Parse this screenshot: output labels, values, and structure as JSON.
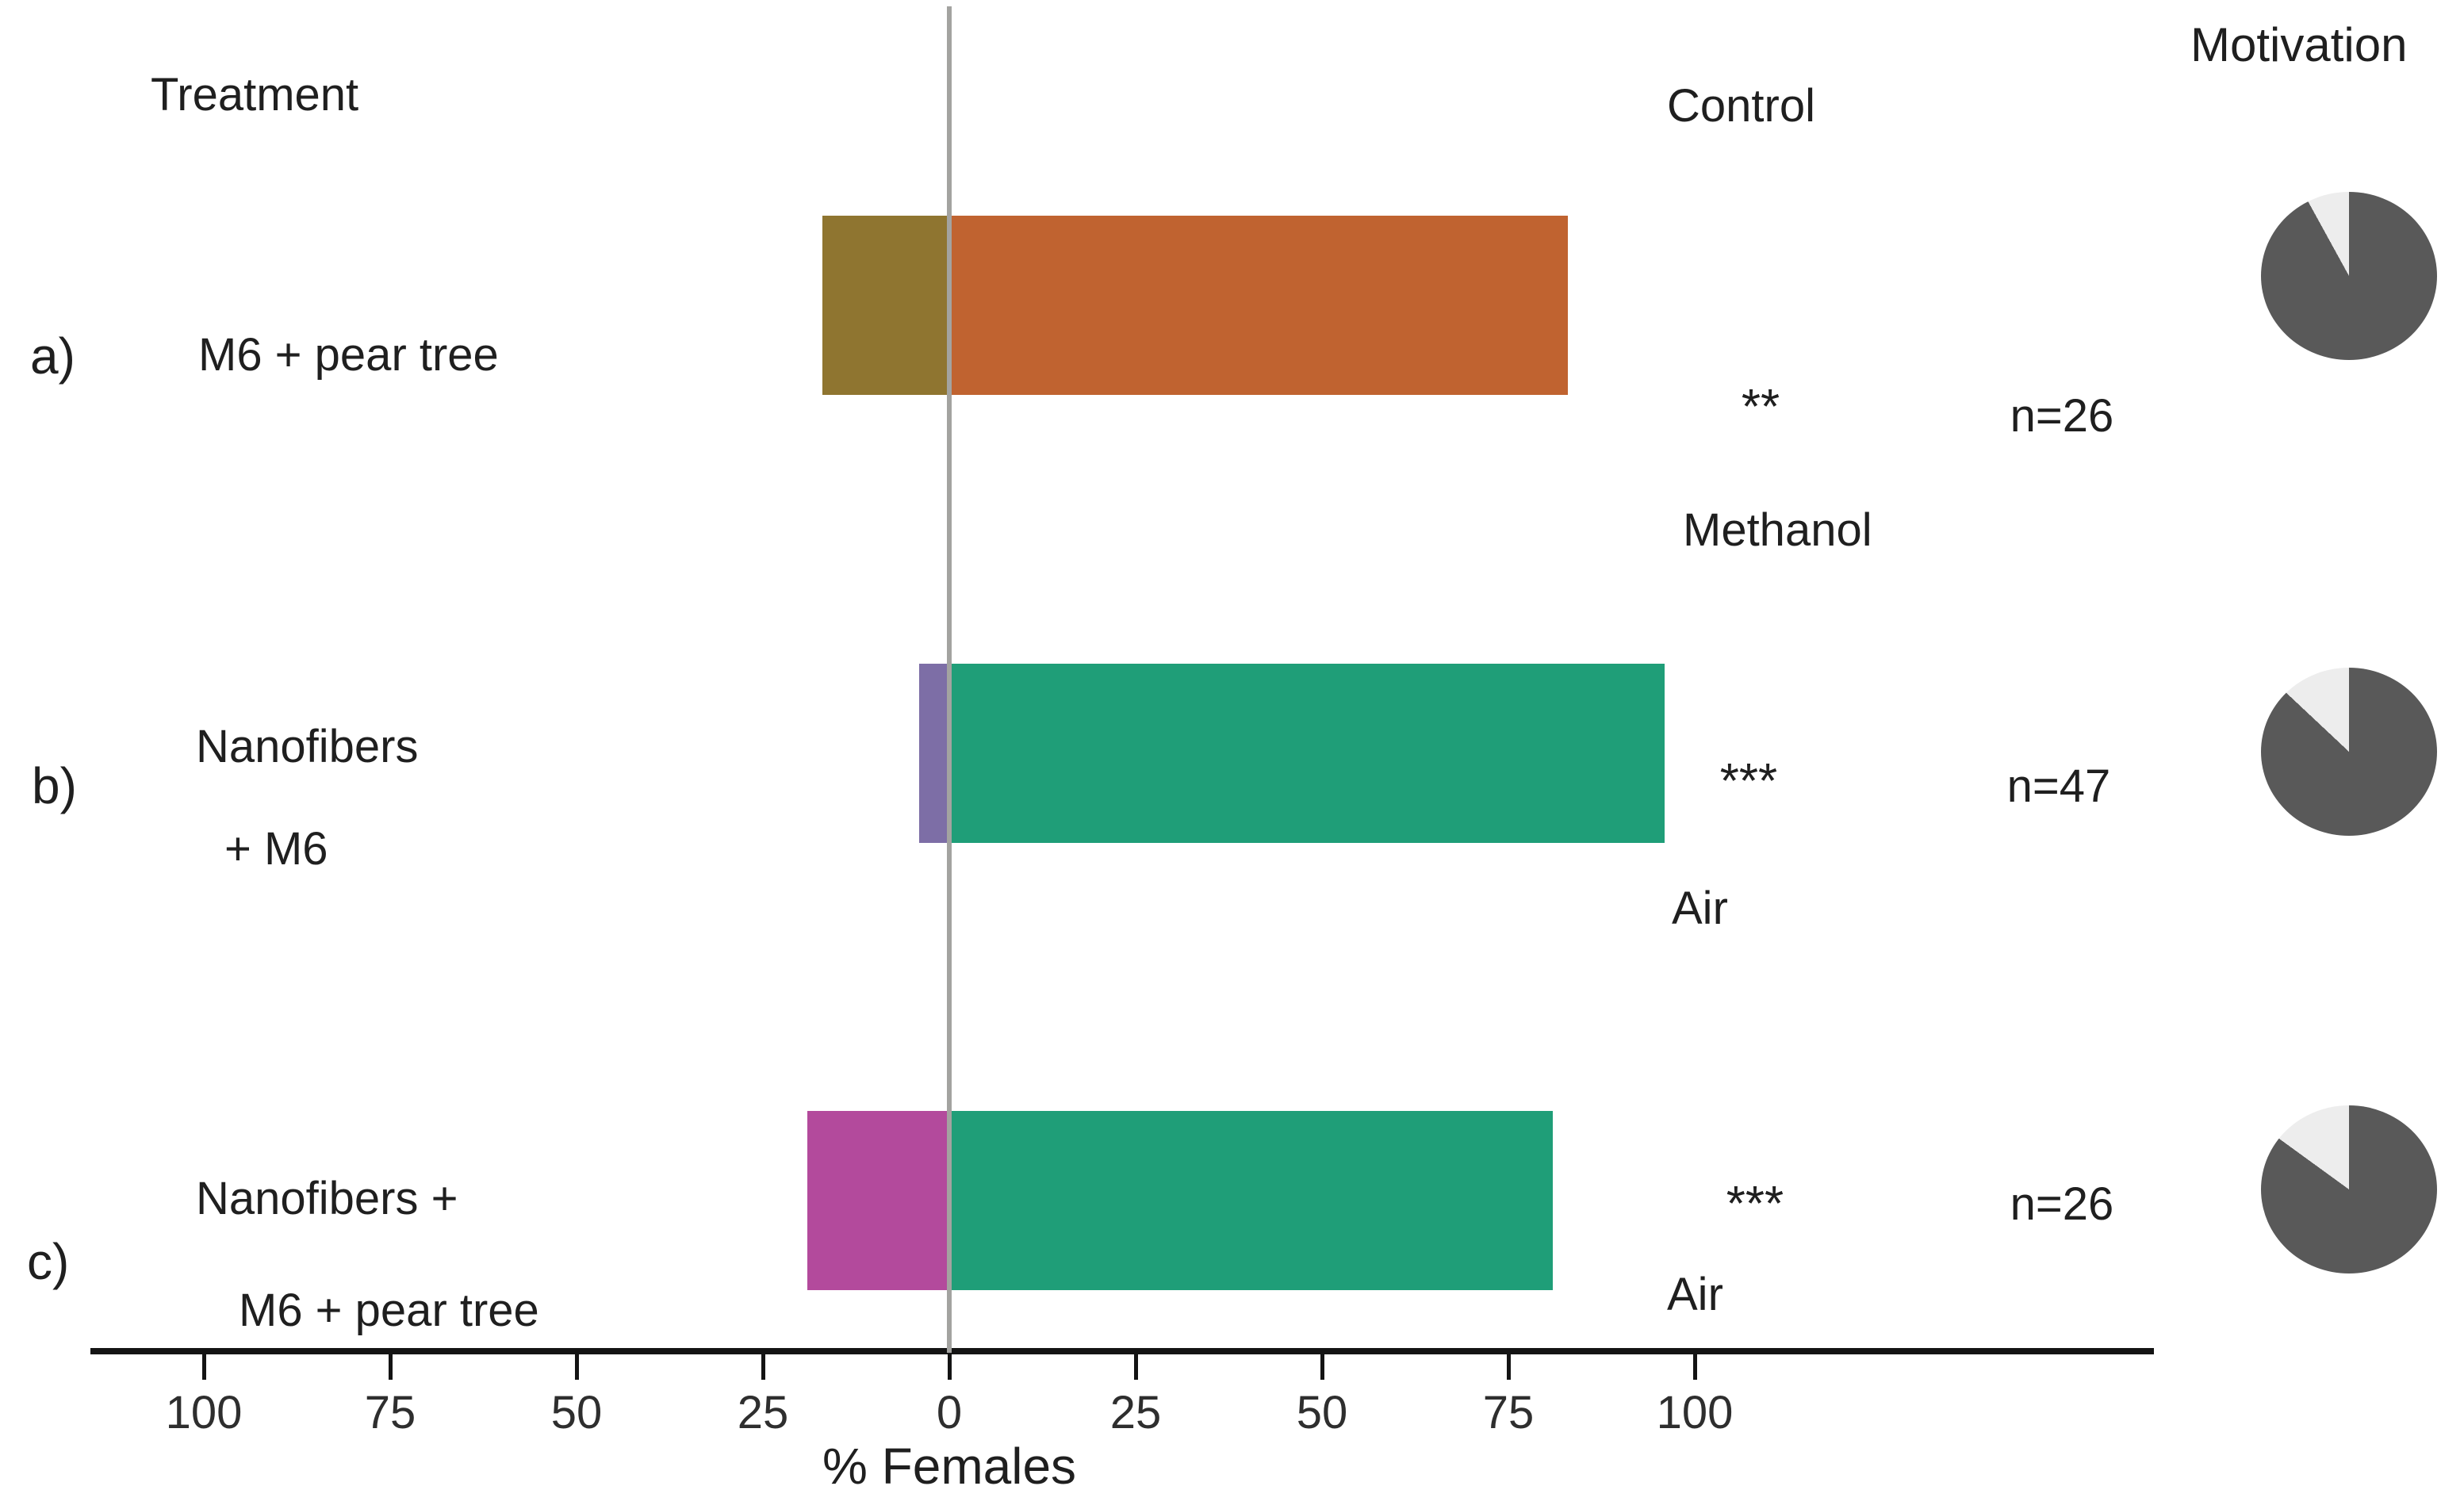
{
  "figure": {
    "headers": {
      "treatment": "Treatment",
      "control": "Control",
      "motivation": "Motivation"
    },
    "colors": {
      "zero_line": "#A3A3A0",
      "axis_line": "#141414",
      "pie_dark": "#595959",
      "pie_light": "#EDEDED",
      "text": "#1F1F1F"
    }
  },
  "chart_data": {
    "type": "bar",
    "subtype": "horizontal diverging two-choice preference bars with motivation pie charts",
    "title": "",
    "xlabel": "% Females",
    "x_tick_labels": [
      "100",
      "75",
      "50",
      "25",
      "0",
      "25",
      "50",
      "75",
      "100"
    ],
    "x_tick_values": [
      -100,
      -75,
      -50,
      -25,
      0,
      25,
      50,
      75,
      100
    ],
    "xlim": [
      -115,
      115
    ],
    "grid": false,
    "legend_position": "none",
    "column_headers": {
      "left": "Treatment",
      "right": "Control",
      "pies": "Motivation"
    },
    "rows": [
      {
        "id": "a)",
        "treatment_lines": [
          "M6 + pear tree"
        ],
        "treatment_pct": 17,
        "control_pct": 83,
        "treatment_color": "#8F7530",
        "control_color": "#C06330",
        "significance": "**",
        "n_label": "n=26",
        "control_name": "Methanol",
        "motivation_pie": {
          "dark_pct": 92,
          "light_pct": 8
        }
      },
      {
        "id": "b)",
        "treatment_lines": [
          "Nanofibers",
          "+ M6"
        ],
        "treatment_pct": 4,
        "control_pct": 96,
        "treatment_color": "#7D6EA6",
        "control_color": "#1F9E78",
        "significance": "***",
        "n_label": "n=47",
        "control_name": "Air",
        "motivation_pie": {
          "dark_pct": 87,
          "light_pct": 13
        }
      },
      {
        "id": "c)",
        "treatment_lines": [
          "Nanofibers +",
          "M6 + pear tree"
        ],
        "treatment_pct": 19,
        "control_pct": 81,
        "treatment_color": "#B34A9C",
        "control_color": "#1F9E78",
        "significance": "***",
        "n_label": "n=26",
        "control_name": "Air",
        "motivation_pie": {
          "dark_pct": 85,
          "light_pct": 15
        }
      }
    ]
  }
}
